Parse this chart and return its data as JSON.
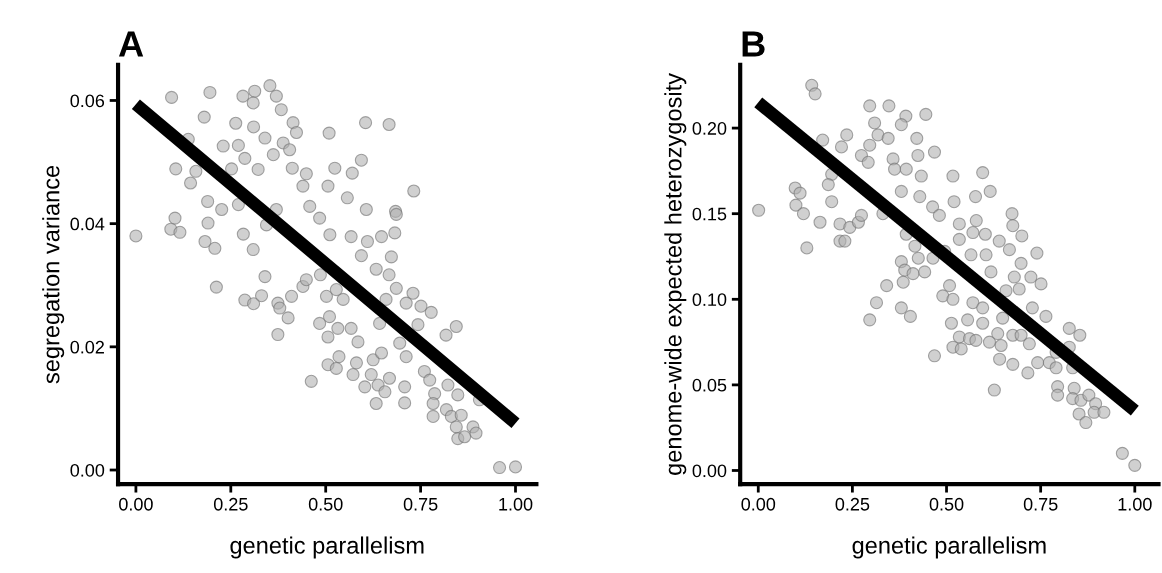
{
  "chart_data": [
    {
      "type": "scatter",
      "title": "A",
      "xlabel": "genetic parallelism",
      "ylabel": "segregation variance",
      "xlim": [
        -0.047,
        1.055
      ],
      "ylim": [
        -0.0023,
        0.0658
      ],
      "xticks": [
        {
          "value": 0,
          "label": "0.00"
        },
        {
          "value": 0.25,
          "label": "0.25"
        },
        {
          "value": 0.5,
          "label": "0.50"
        },
        {
          "value": 0.75,
          "label": "0.75"
        },
        {
          "value": 1,
          "label": "1.00"
        }
      ],
      "yticks": [
        {
          "value": 0,
          "label": "0.00"
        },
        {
          "value": 0.02,
          "label": "0.02"
        },
        {
          "value": 0.04,
          "label": "0.04"
        },
        {
          "value": 0.06,
          "label": "0.06"
        }
      ],
      "marker": "circle",
      "series": [
        {
          "color": "#b0b0b0",
          "x": [
            0.0,
            0.094,
            0.195,
            0.282,
            0.313,
            0.353,
            0.37,
            0.383,
            0.309,
            0.18,
            0.263,
            0.31,
            0.414,
            0.423,
            0.509,
            0.605,
            0.667,
            0.138,
            0.23,
            0.27,
            0.34,
            0.388,
            0.405,
            0.594,
            0.287,
            0.362,
            0.105,
            0.158,
            0.144,
            0.252,
            0.322,
            0.412,
            0.449,
            0.524,
            0.57,
            0.506,
            0.732,
            0.44,
            0.189,
            0.226,
            0.27,
            0.103,
            0.092,
            0.116,
            0.19,
            0.182,
            0.208,
            0.283,
            0.309,
            0.344,
            0.37,
            0.458,
            0.484,
            0.557,
            0.607,
            0.684,
            0.686,
            0.682,
            0.647,
            0.511,
            0.567,
            0.61,
            0.594,
            0.673,
            0.633,
            0.667,
            0.686,
            0.73,
            0.212,
            0.287,
            0.31,
            0.331,
            0.34,
            0.374,
            0.379,
            0.401,
            0.374,
            0.41,
            0.44,
            0.449,
            0.486,
            0.502,
            0.546,
            0.528,
            0.484,
            0.51,
            0.532,
            0.567,
            0.642,
            0.659,
            0.712,
            0.751,
            0.778,
            0.743,
            0.817,
            0.844,
            0.506,
            0.585,
            0.535,
            0.506,
            0.528,
            0.462,
            0.572,
            0.581,
            0.625,
            0.647,
            0.712,
            0.695,
            0.62,
            0.638,
            0.668,
            0.708,
            0.603,
            0.656,
            0.633,
            0.708,
            0.76,
            0.774,
            0.787,
            0.783,
            0.783,
            0.822,
            0.848,
            0.818,
            0.831,
            0.857,
            0.844,
            0.848,
            0.866,
            0.888,
            0.896,
            0.905,
            0.958,
            1.0
          ],
          "values": [
            0.038,
            0.0605,
            0.0613,
            0.0607,
            0.0615,
            0.0624,
            0.0607,
            0.0585,
            0.0596,
            0.0573,
            0.0563,
            0.0557,
            0.0564,
            0.0548,
            0.0547,
            0.0564,
            0.0561,
            0.0537,
            0.0526,
            0.0527,
            0.0539,
            0.0531,
            0.052,
            0.0503,
            0.0506,
            0.0512,
            0.0489,
            0.0485,
            0.0466,
            0.0489,
            0.0488,
            0.049,
            0.0481,
            0.049,
            0.0482,
            0.0461,
            0.0453,
            0.0461,
            0.0436,
            0.0423,
            0.0431,
            0.0409,
            0.0391,
            0.0386,
            0.0401,
            0.0371,
            0.036,
            0.0383,
            0.0358,
            0.0398,
            0.0423,
            0.0428,
            0.0409,
            0.0442,
            0.0423,
            0.042,
            0.0415,
            0.0385,
            0.0379,
            0.0382,
            0.0379,
            0.0371,
            0.0348,
            0.0346,
            0.0326,
            0.0317,
            0.0295,
            0.0287,
            0.0297,
            0.0276,
            0.027,
            0.0283,
            0.0314,
            0.0271,
            0.0263,
            0.0247,
            0.022,
            0.0282,
            0.0298,
            0.0309,
            0.0317,
            0.0282,
            0.0277,
            0.0293,
            0.0238,
            0.0249,
            0.023,
            0.023,
            0.0238,
            0.0277,
            0.0271,
            0.0266,
            0.0256,
            0.0236,
            0.0219,
            0.0233,
            0.0216,
            0.0208,
            0.0184,
            0.0171,
            0.0165,
            0.0144,
            0.0155,
            0.0174,
            0.0179,
            0.019,
            0.0184,
            0.0206,
            0.0155,
            0.0138,
            0.0149,
            0.0135,
            0.0135,
            0.0127,
            0.0108,
            0.0109,
            0.016,
            0.0146,
            0.0124,
            0.0108,
            0.0087,
            0.0138,
            0.0122,
            0.0098,
            0.0087,
            0.0089,
            0.007,
            0.0051,
            0.0054,
            0.007,
            0.006,
            0.0114,
            0.0004,
            0.0005
          ]
        },
        {
          "type": "line",
          "color": "#000000",
          "marker": "none",
          "x": [
            0,
            1
          ],
          "values": [
            0.0594,
            0.0076
          ]
        }
      ]
    },
    {
      "type": "scatter",
      "title": "B",
      "xlabel": "genetic parallelism",
      "ylabel": "genome-wide expected heterozygosity",
      "xlim": [
        -0.048,
        1.063
      ],
      "ylim": [
        -0.008,
        0.237
      ],
      "xticks": [
        {
          "value": 0,
          "label": "0.00"
        },
        {
          "value": 0.25,
          "label": "0.25"
        },
        {
          "value": 0.5,
          "label": "0.50"
        },
        {
          "value": 0.75,
          "label": "0.75"
        },
        {
          "value": 1,
          "label": "1.00"
        }
      ],
      "yticks": [
        {
          "value": 0,
          "label": "0.00"
        },
        {
          "value": 0.05,
          "label": "0.05"
        },
        {
          "value": 0.1,
          "label": "0.10"
        },
        {
          "value": 0.15,
          "label": "0.15"
        },
        {
          "value": 0.2,
          "label": "0.20"
        }
      ],
      "marker": "circle",
      "series": [
        {
          "color": "#b0b0b0",
          "x": [
            0.001,
            0.142,
            0.151,
            0.296,
            0.347,
            0.392,
            0.445,
            0.38,
            0.309,
            0.318,
            0.345,
            0.421,
            0.235,
            0.171,
            0.221,
            0.296,
            0.274,
            0.292,
            0.358,
            0.424,
            0.468,
            0.596,
            0.362,
            0.393,
            0.433,
            0.517,
            0.195,
            0.186,
            0.098,
            0.111,
            0.1,
            0.12,
            0.164,
            0.129,
            0.195,
            0.217,
            0.243,
            0.217,
            0.23,
            0.266,
            0.274,
            0.331,
            0.38,
            0.429,
            0.463,
            0.481,
            0.52,
            0.577,
            0.616,
            0.674,
            0.676,
            0.7,
            0.579,
            0.534,
            0.57,
            0.603,
            0.534,
            0.393,
            0.416,
            0.64,
            0.667,
            0.74,
            0.698,
            0.605,
            0.565,
            0.495,
            0.464,
            0.425,
            0.38,
            0.389,
            0.411,
            0.442,
            0.385,
            0.341,
            0.314,
            0.296,
            0.38,
            0.404,
            0.508,
            0.49,
            0.517,
            0.57,
            0.618,
            0.68,
            0.724,
            0.751,
            0.658,
            0.693,
            0.728,
            0.764,
            0.596,
            0.556,
            0.596,
            0.649,
            0.513,
            0.534,
            0.561,
            0.578,
            0.517,
            0.539,
            0.614,
            0.636,
            0.645,
            0.676,
            0.72,
            0.698,
            0.468,
            0.641,
            0.676,
            0.716,
            0.742,
            0.773,
            0.791,
            0.826,
            0.854,
            0.791,
            0.835,
            0.826,
            0.627,
            0.795,
            0.795,
            0.839,
            0.835,
            0.857,
            0.878,
            0.896,
            0.852,
            0.87,
            0.892,
            0.918,
            0.967,
            1.0
          ],
          "values": [
            0.152,
            0.225,
            0.22,
            0.213,
            0.213,
            0.207,
            0.208,
            0.202,
            0.203,
            0.196,
            0.194,
            0.194,
            0.196,
            0.193,
            0.189,
            0.19,
            0.184,
            0.18,
            0.182,
            0.184,
            0.186,
            0.174,
            0.176,
            0.176,
            0.172,
            0.172,
            0.173,
            0.167,
            0.165,
            0.162,
            0.155,
            0.15,
            0.145,
            0.13,
            0.157,
            0.144,
            0.142,
            0.134,
            0.134,
            0.145,
            0.149,
            0.15,
            0.163,
            0.16,
            0.154,
            0.149,
            0.157,
            0.16,
            0.163,
            0.15,
            0.143,
            0.137,
            0.146,
            0.144,
            0.139,
            0.138,
            0.135,
            0.138,
            0.131,
            0.134,
            0.129,
            0.127,
            0.121,
            0.126,
            0.126,
            0.128,
            0.124,
            0.124,
            0.122,
            0.117,
            0.115,
            0.116,
            0.11,
            0.108,
            0.098,
            0.088,
            0.095,
            0.09,
            0.108,
            0.102,
            0.1,
            0.098,
            0.116,
            0.113,
            0.113,
            0.109,
            0.105,
            0.106,
            0.095,
            0.09,
            0.095,
            0.088,
            0.086,
            0.089,
            0.086,
            0.078,
            0.077,
            0.076,
            0.072,
            0.071,
            0.075,
            0.08,
            0.073,
            0.079,
            0.074,
            0.079,
            0.067,
            0.065,
            0.062,
            0.057,
            0.063,
            0.063,
            0.069,
            0.083,
            0.079,
            0.06,
            0.06,
            0.072,
            0.047,
            0.049,
            0.044,
            0.048,
            0.042,
            0.041,
            0.044,
            0.039,
            0.033,
            0.028,
            0.034,
            0.034,
            0.01,
            0.003
          ]
        },
        {
          "type": "line",
          "color": "#000000",
          "marker": "none",
          "x": [
            0,
            1
          ],
          "values": [
            0.215,
            0.035
          ]
        }
      ]
    }
  ]
}
